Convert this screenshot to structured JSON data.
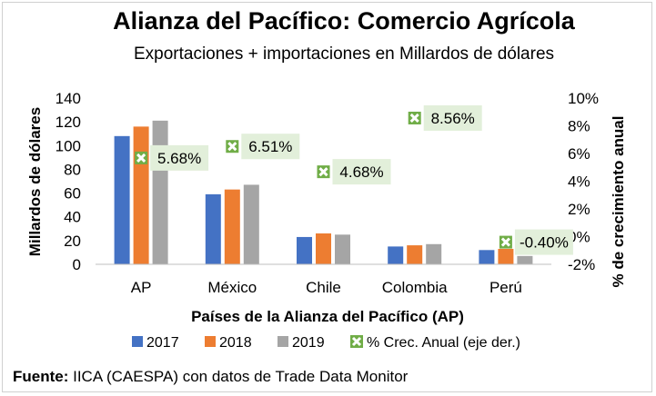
{
  "chart_data": {
    "type": "bar",
    "title": "Alianza del Pacífico: Comercio Agrícola",
    "subtitle": "Exportaciones + importaciones en Millardos de dólares",
    "xlabel": "Países de la Alianza del Pacífico (AP)",
    "ylabel": "Millardos de dólares",
    "ylabel_right": "% de crecimiento anual",
    "categories": [
      "AP",
      "México",
      "Chile",
      "Colombia",
      "Perú"
    ],
    "ylim": [
      0,
      140
    ],
    "yticks": [
      "0",
      "20",
      "40",
      "60",
      "80",
      "100",
      "120",
      "140"
    ],
    "y2lim": [
      -2,
      10
    ],
    "y2ticks": [
      "-2%",
      "0%",
      "2%",
      "4%",
      "6%",
      "8%",
      "10%"
    ],
    "series": [
      {
        "name": "2017",
        "color": "#4472C4",
        "values": [
          108,
          59,
          23,
          15,
          12
        ]
      },
      {
        "name": "2018",
        "color": "#ED7D31",
        "values": [
          116,
          63,
          26,
          16,
          13
        ]
      },
      {
        "name": "2019",
        "color": "#A5A5A5",
        "values": [
          121,
          67,
          25,
          17,
          7
        ]
      }
    ],
    "growth_series": {
      "name": "% Crec. Anual (eje der.)",
      "values": [
        5.68,
        6.51,
        4.68,
        8.56,
        -0.4
      ],
      "labels": [
        "5.68%",
        "6.51%",
        "4.68%",
        "8.56%",
        "-0.40%"
      ],
      "marker_color": "#70AD47"
    },
    "legend_position": "bottom",
    "grid": false
  },
  "source": {
    "label": "Fuente:",
    "text": " IICA (CAESPA) con datos de Trade Data Monitor"
  }
}
